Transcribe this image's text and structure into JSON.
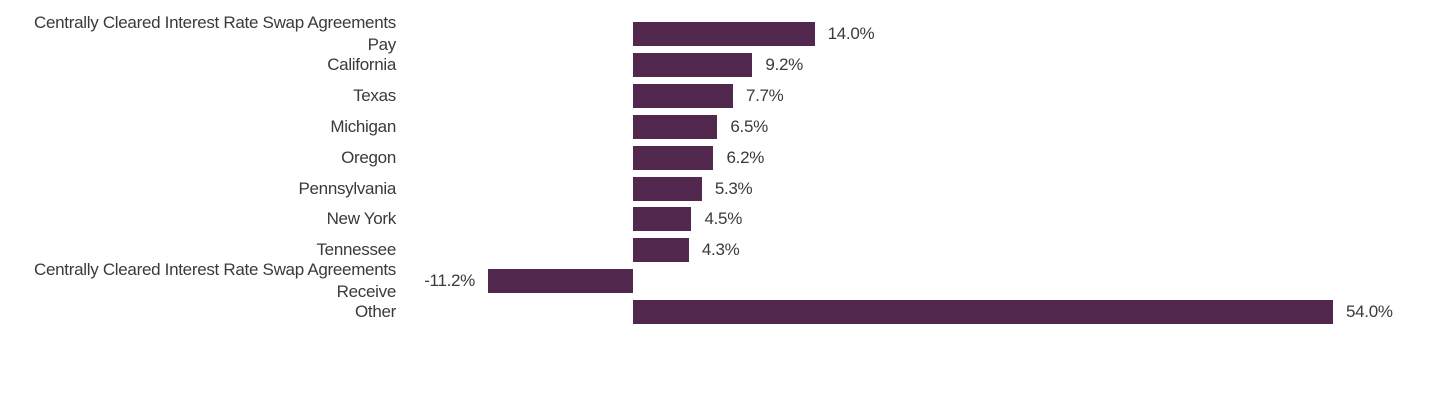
{
  "chart_data": {
    "type": "bar",
    "orientation": "horizontal",
    "categories": [
      "Centrally Cleared Interest Rate Swap Agreements\nPay",
      "California",
      "Texas",
      "Michigan",
      "Oregon",
      "Pennsylvania",
      "New York",
      "Tennessee",
      "Centrally Cleared Interest Rate Swap Agreements\nReceive",
      "Other"
    ],
    "values": [
      14.0,
      9.2,
      7.7,
      6.5,
      6.2,
      5.3,
      4.5,
      4.3,
      -11.2,
      54.0
    ],
    "value_labels": [
      "14.0%",
      "9.2%",
      "7.7%",
      "6.5%",
      "6.2%",
      "5.3%",
      "4.5%",
      "4.3%",
      "-11.2%",
      "54.0%"
    ],
    "color": "#52284f"
  }
}
